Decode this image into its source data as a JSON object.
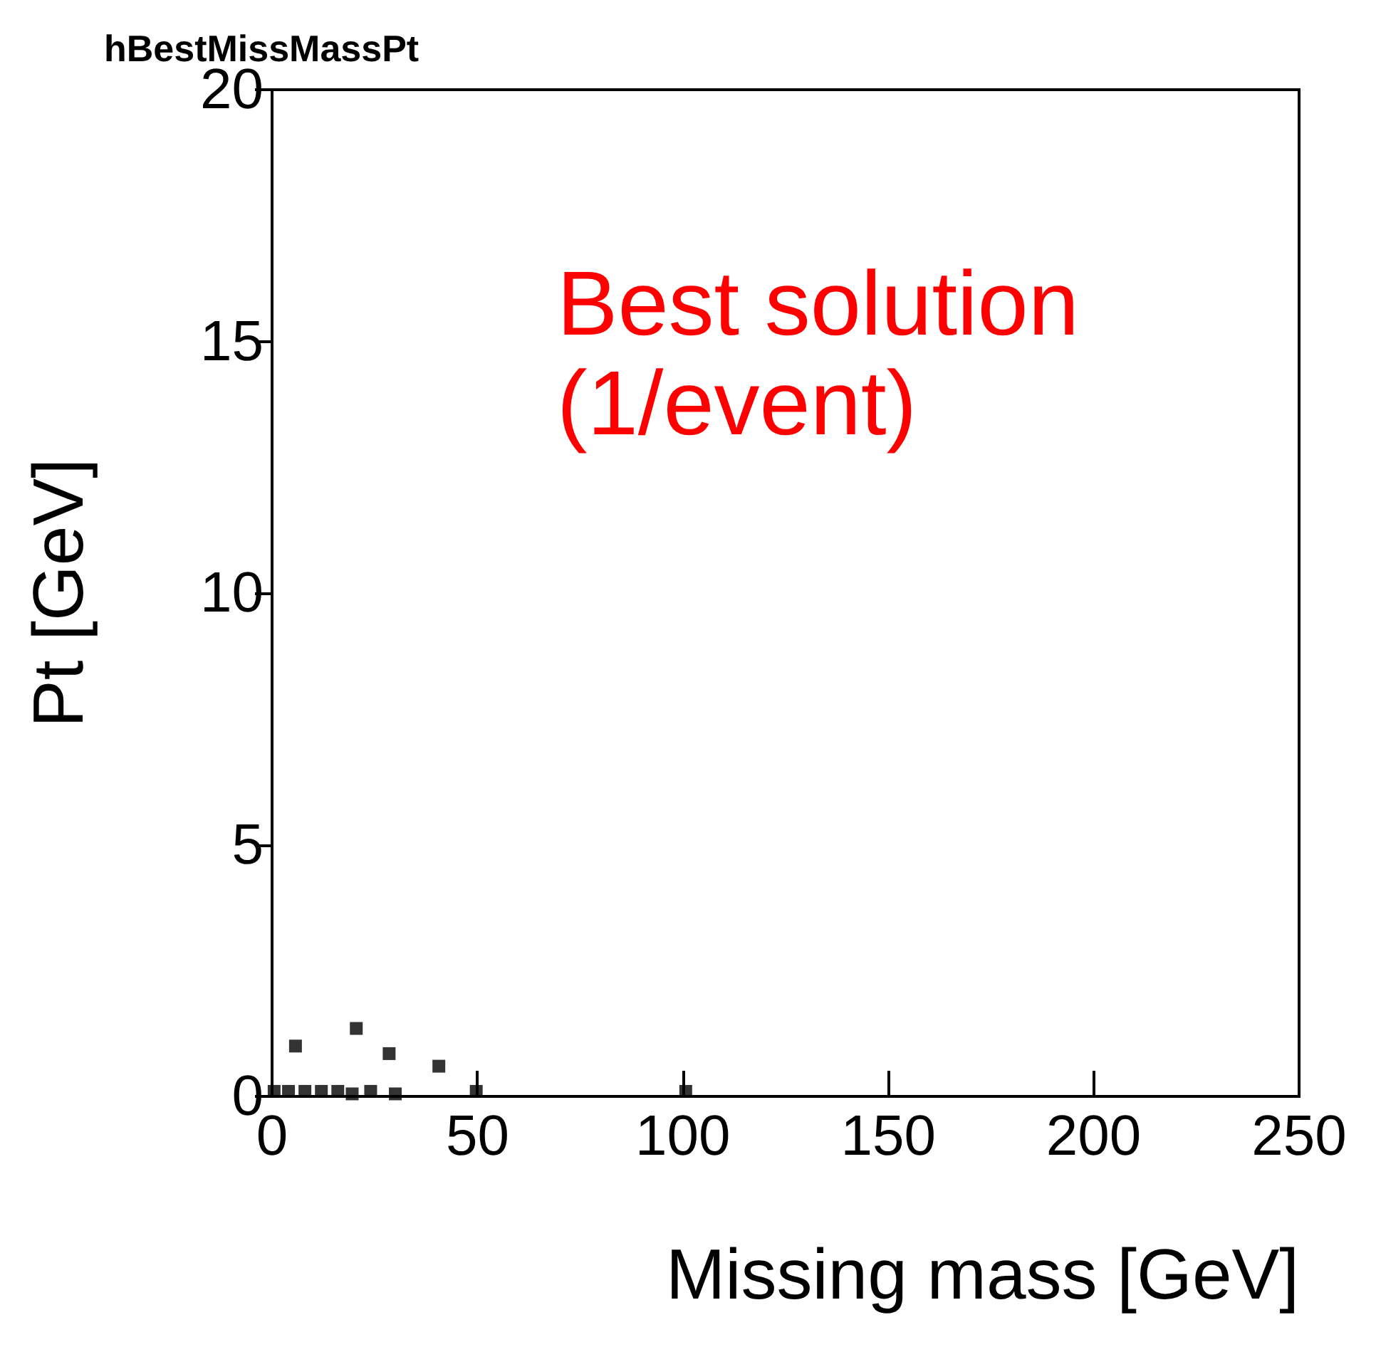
{
  "chart_data": {
    "type": "scatter",
    "title": "hBestMissMassPt",
    "xlabel": "Missing mass [GeV]",
    "ylabel": "Pt [GeV]",
    "annotations": [
      "Best solution\n(1/event)"
    ],
    "x": [
      0.5,
      4,
      8,
      12,
      16,
      19.5,
      5.7,
      20.5,
      24,
      28.5,
      30,
      40.6,
      49.7,
      100.7
    ],
    "series": [
      {
        "color": "#000000",
        "values": [
          0.1,
          0.1,
          0.1,
          0.1,
          0.1,
          0.05,
          1.0,
          1.35,
          0.1,
          0.85,
          0.05,
          0.6,
          0.1,
          0.1
        ]
      }
    ],
    "xlim": [
      0,
      250
    ],
    "xticks": [
      0,
      50,
      100,
      150,
      200,
      250
    ],
    "ylim": [
      0,
      20
    ],
    "yticks": [
      0,
      5,
      10,
      15,
      20
    ],
    "grid": false,
    "marker": "square"
  }
}
